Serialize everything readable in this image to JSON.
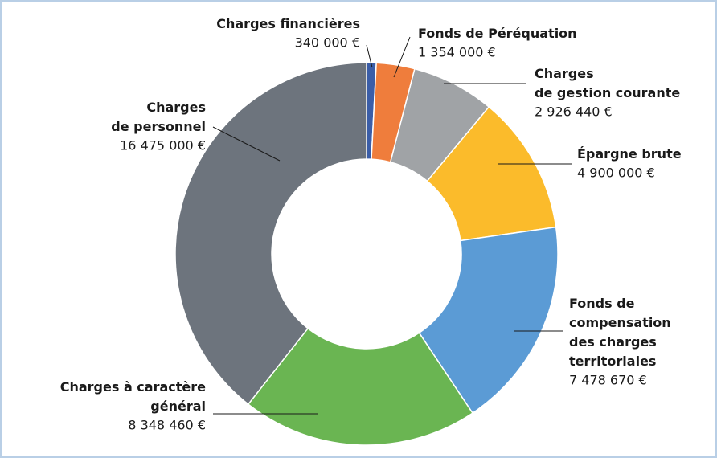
{
  "chart_data": {
    "type": "donut",
    "categories": [
      "Charges financières",
      "Fonds de Péréquation",
      "Charges\nde gestion courante",
      "Épargne brute",
      "Fonds de\ncompensation\ndes charges\nterritoriales",
      "Charges à caractère\ngénéral",
      "Charges\nde personnel"
    ],
    "values": [
      340000,
      1354000,
      2926440,
      4900000,
      7478670,
      8348460,
      16475000
    ],
    "value_labels": [
      "340 000 €",
      "1 354 000 €",
      "2 926 440 €",
      "4 900 000 €",
      "7 478 670 €",
      "8 348 460 €",
      "16 475 000 €"
    ],
    "colors": [
      "#3b5ea8",
      "#ef7d3c",
      "#a0a3a6",
      "#fbbb2b",
      "#5b9bd5",
      "#6ab552",
      "#6d747d"
    ]
  }
}
